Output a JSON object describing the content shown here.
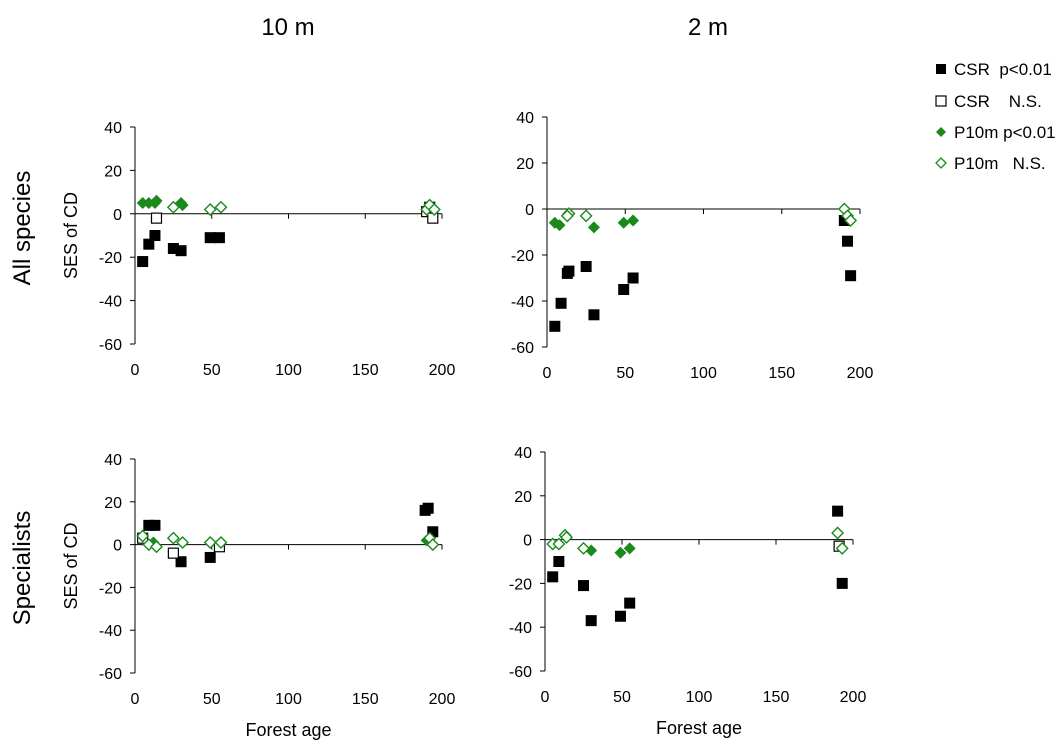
{
  "figure": {
    "column_titles": [
      "10 m",
      "2 m"
    ],
    "row_titles": [
      "All species",
      "Specialists"
    ]
  },
  "legend": {
    "entries": [
      {
        "label": "CSR  p<0.01",
        "marker": "square",
        "filled": true,
        "color": "#000000"
      },
      {
        "label": "CSR    N.S.",
        "marker": "square",
        "filled": false,
        "color": "#000000"
      },
      {
        "label": "P10m p<0.01",
        "marker": "diamond",
        "filled": true,
        "color": "#1a8a1a"
      },
      {
        "label": "P10m   N.S.",
        "marker": "diamond",
        "filled": false,
        "color": "#1a8a1a"
      }
    ]
  },
  "colors": {
    "csr": "#000000",
    "p10m": "#1a8a1a"
  },
  "chart_data": [
    {
      "type": "scatter",
      "row": "All species",
      "column": "10 m",
      "ylabel": "SES of CD",
      "xlabel": "",
      "xlim": [
        0,
        200
      ],
      "ylim": [
        -60,
        40
      ],
      "xticks": [
        0,
        50,
        100,
        150,
        200
      ],
      "yticks": [
        -60,
        -40,
        -20,
        0,
        20,
        40
      ],
      "series": [
        {
          "name": "CSR  p<0.01",
          "points": [
            [
              5,
              -22
            ],
            [
              9,
              -14
            ],
            [
              13,
              -10
            ],
            [
              25,
              -16
            ],
            [
              30,
              -17
            ],
            [
              49,
              -11
            ],
            [
              55,
              -11
            ]
          ]
        },
        {
          "name": "CSR    N.S.",
          "points": [
            [
              14,
              -2
            ],
            [
              190,
              1
            ],
            [
              192,
              3
            ],
            [
              194,
              -2
            ]
          ]
        },
        {
          "name": "P10m p<0.01",
          "points": [
            [
              5,
              5
            ],
            [
              9,
              5
            ],
            [
              13,
              5
            ],
            [
              14,
              6
            ],
            [
              30,
              5
            ],
            [
              31,
              4
            ]
          ]
        },
        {
          "name": "P10m   N.S.",
          "points": [
            [
              25,
              3
            ],
            [
              49,
              2
            ],
            [
              56,
              3
            ],
            [
              190,
              2
            ],
            [
              192,
              4
            ],
            [
              195,
              2
            ]
          ]
        }
      ]
    },
    {
      "type": "scatter",
      "row": "All species",
      "column": "2 m",
      "ylabel": "",
      "xlabel": "",
      "xlim": [
        0,
        200
      ],
      "ylim": [
        -60,
        40
      ],
      "xticks": [
        0,
        50,
        100,
        150,
        200
      ],
      "yticks": [
        -60,
        -40,
        -20,
        0,
        20,
        40
      ],
      "series": [
        {
          "name": "CSR  p<0.01",
          "points": [
            [
              5,
              -51
            ],
            [
              9,
              -41
            ],
            [
              13,
              -28
            ],
            [
              14,
              -27
            ],
            [
              25,
              -25
            ],
            [
              30,
              -46
            ],
            [
              49,
              -35
            ],
            [
              55,
              -30
            ],
            [
              190,
              -5
            ],
            [
              192,
              -14
            ],
            [
              194,
              -29
            ]
          ]
        },
        {
          "name": "CSR    N.S.",
          "points": []
        },
        {
          "name": "P10m p<0.01",
          "points": [
            [
              5,
              -6
            ],
            [
              8,
              -7
            ],
            [
              30,
              -8
            ],
            [
              49,
              -6
            ],
            [
              55,
              -5
            ]
          ]
        },
        {
          "name": "P10m   N.S.",
          "points": [
            [
              14,
              -2
            ],
            [
              13,
              -3
            ],
            [
              25,
              -3
            ],
            [
              190,
              0
            ],
            [
              192,
              -3
            ],
            [
              194,
              -5
            ]
          ]
        }
      ]
    },
    {
      "type": "scatter",
      "row": "Specialists",
      "column": "10 m",
      "ylabel": "SES of CD",
      "xlabel": "Forest age",
      "xlim": [
        0,
        200
      ],
      "ylim": [
        -60,
        40
      ],
      "xticks": [
        0,
        50,
        100,
        150,
        200
      ],
      "yticks": [
        -60,
        -40,
        -20,
        0,
        20,
        40
      ],
      "series": [
        {
          "name": "CSR  p<0.01",
          "points": [
            [
              9,
              9
            ],
            [
              13,
              9
            ],
            [
              30,
              -8
            ],
            [
              49,
              -6
            ],
            [
              189,
              16
            ],
            [
              191,
              17
            ],
            [
              194,
              6
            ]
          ]
        },
        {
          "name": "CSR    N.S.",
          "points": [
            [
              5,
              3
            ],
            [
              25,
              -4
            ],
            [
              55,
              -1
            ]
          ]
        },
        {
          "name": "P10m p<0.01",
          "points": [
            [
              12,
              1
            ],
            [
              190,
              2
            ]
          ]
        },
        {
          "name": "P10m   N.S.",
          "points": [
            [
              5,
              4
            ],
            [
              9,
              0
            ],
            [
              14,
              -1
            ],
            [
              25,
              3
            ],
            [
              31,
              1
            ],
            [
              49,
              1
            ],
            [
              56,
              1
            ],
            [
              192,
              3
            ],
            [
              194,
              0
            ]
          ]
        }
      ]
    },
    {
      "type": "scatter",
      "row": "Specialists",
      "column": "2 m",
      "ylabel": "",
      "xlabel": "Forest age",
      "xlim": [
        0,
        200
      ],
      "ylim": [
        -60,
        40
      ],
      "xticks": [
        0,
        50,
        100,
        150,
        200
      ],
      "yticks": [
        -60,
        -40,
        -20,
        0,
        20,
        40
      ],
      "series": [
        {
          "name": "CSR  p<0.01",
          "points": [
            [
              5,
              -17
            ],
            [
              9,
              -10
            ],
            [
              25,
              -21
            ],
            [
              30,
              -37
            ],
            [
              49,
              -35
            ],
            [
              55,
              -29
            ],
            [
              190,
              13
            ],
            [
              193,
              -20
            ]
          ]
        },
        {
          "name": "CSR    N.S.",
          "points": [
            [
              191,
              -3
            ]
          ]
        },
        {
          "name": "P10m p<0.01",
          "points": [
            [
              30,
              -5
            ],
            [
              49,
              -6
            ],
            [
              55,
              -4
            ]
          ]
        },
        {
          "name": "P10m   N.S.",
          "points": [
            [
              5,
              -2
            ],
            [
              9,
              -2
            ],
            [
              13,
              2
            ],
            [
              14,
              1
            ],
            [
              25,
              -4
            ],
            [
              190,
              3
            ],
            [
              193,
              -4
            ]
          ]
        }
      ]
    }
  ]
}
